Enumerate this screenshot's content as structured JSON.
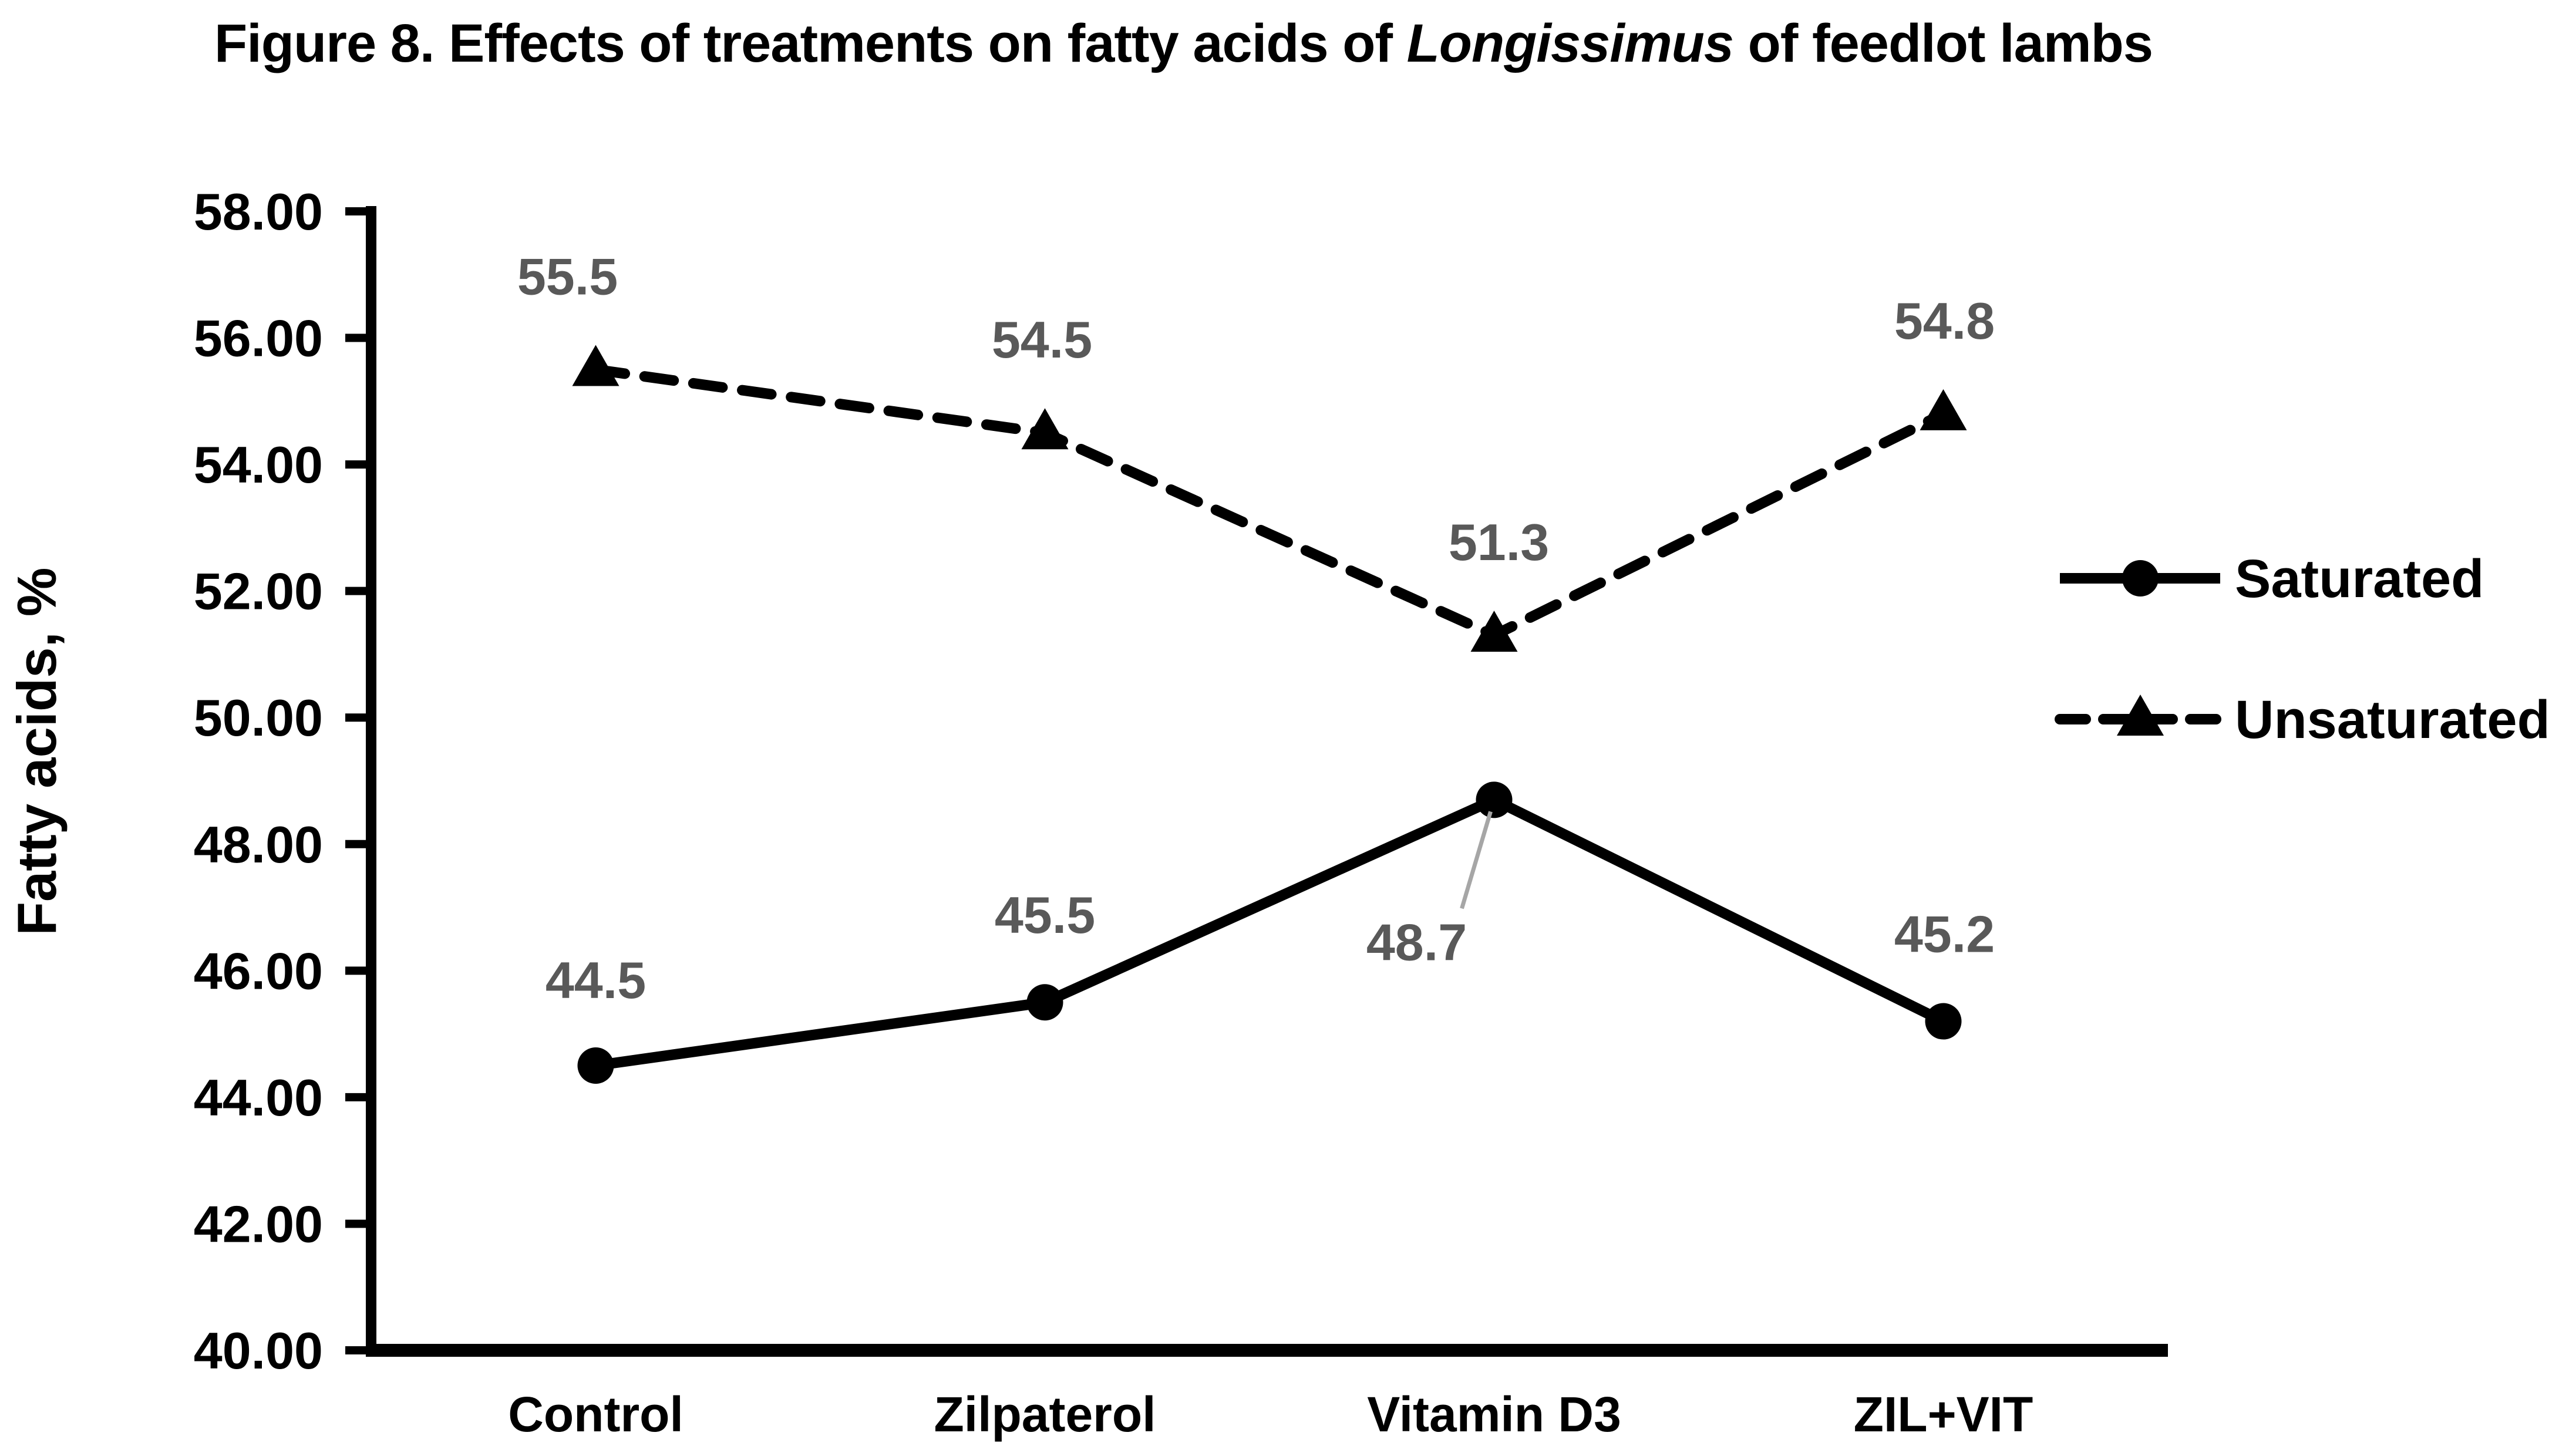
{
  "figure_title": {
    "prefix": "Figure 8. Effects of treatments on fatty acids of ",
    "italic": "Longissimus",
    "suffix": " of feedlot lambs"
  },
  "chart_data": {
    "type": "line",
    "title": "Figure 8. Effects of treatments on fatty acids of Longissimus of feedlot lambs",
    "categories": [
      "Control",
      "Zilpaterol",
      "Vitamin D3",
      "ZIL+VIT"
    ],
    "series": [
      {
        "name": "Saturated",
        "values": [
          44.5,
          45.5,
          48.7,
          45.2
        ],
        "line_style": "solid",
        "marker": "circle",
        "color": "#000000",
        "labels": [
          "44.5",
          "45.5",
          "48.7",
          "45.2"
        ],
        "label_offsets": [
          [
            0,
            -115
          ],
          [
            0,
            -118
          ],
          [
            -132,
            273
          ],
          [
            2,
            -118
          ]
        ]
      },
      {
        "name": "Unsaturated",
        "values": [
          55.5,
          54.5,
          51.3,
          54.8
        ],
        "line_style": "dashed",
        "marker": "triangle",
        "color": "#000000",
        "labels": [
          "55.5",
          "54.5",
          "51.3",
          "54.8"
        ],
        "label_offsets": [
          [
            -48,
            -128
          ],
          [
            -5,
            -128
          ],
          [
            8,
            -128
          ],
          [
            2,
            -128
          ]
        ]
      }
    ],
    "leader_line": {
      "series_index": 0,
      "point_index": 2,
      "from_offset": [
        -55,
        185
      ],
      "to_offset": [
        -6,
        20
      ],
      "color": "#a6a6a6"
    },
    "xlabel": "",
    "ylabel": "Fatty acids, %",
    "ylim": [
      40,
      58
    ],
    "ytick_step": 2,
    "ytick_labels": [
      "58.00",
      "56.00",
      "54.00",
      "52.00",
      "50.00",
      "48.00",
      "46.00",
      "44.00",
      "42.00",
      "40.00"
    ],
    "grid": false,
    "legend": {
      "position": "right",
      "entries": [
        "Saturated",
        "Unsaturated"
      ]
    },
    "colors": {
      "axis": "#000000",
      "series": "#000000",
      "data_label": "#595959",
      "leader_line": "#a6a6a6"
    }
  }
}
